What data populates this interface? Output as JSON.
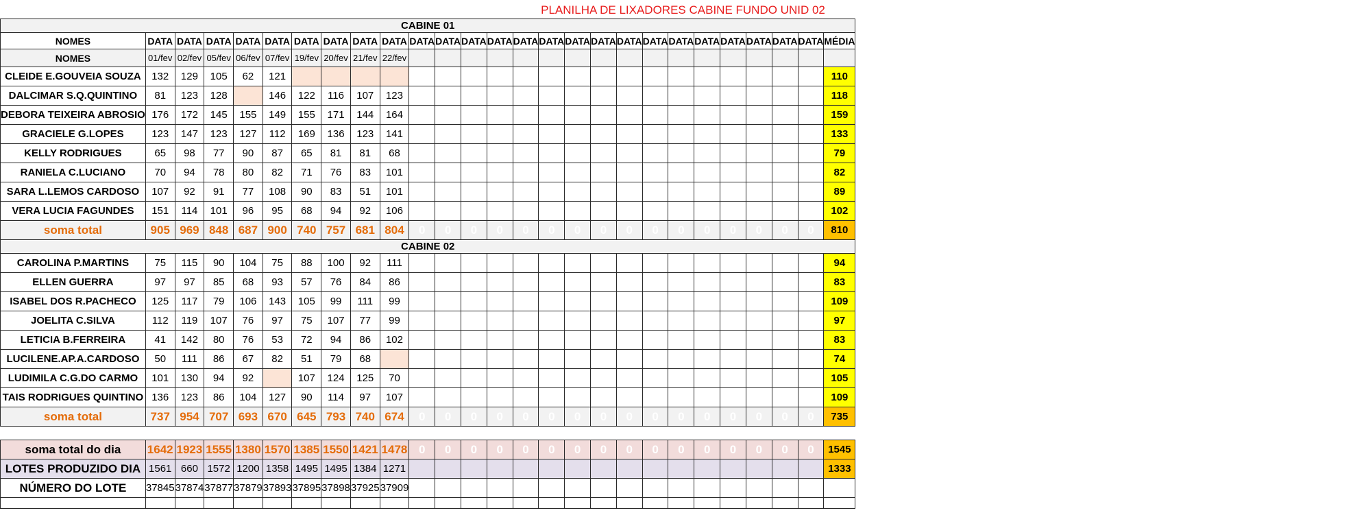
{
  "title": "PLANILHA DE LIXADORES CABINE FUNDO UNID 02",
  "cabine1_label": "CABINE 01",
  "cabine2_label": "CABINE 02",
  "header": {
    "nomes_label": "NOMES",
    "data_label": "DATA",
    "media_label": "MÉDIA",
    "dates": [
      "01/fev",
      "02/fev",
      "05/fev",
      "06/fev",
      "07/fev",
      "19/fev",
      "20/fev",
      "21/fev",
      "22/fev",
      "",
      "",
      "",
      "",
      "",
      "",
      "",
      "",
      "",
      "",
      "",
      "",
      "",
      "",
      "",
      ""
    ]
  },
  "total_label": "soma total",
  "cabine1": [
    {
      "name": "CLEIDE E.GOUVEIA SOUZA",
      "values": [
        "132",
        "129",
        "105",
        "62",
        "121",
        "",
        "",
        "",
        ""
      ],
      "missing": [
        5,
        6,
        7,
        8
      ],
      "avg": "110"
    },
    {
      "name": "DALCIMAR S.Q.QUINTINO",
      "values": [
        "81",
        "123",
        "128",
        "",
        "146",
        "122",
        "116",
        "107",
        "123"
      ],
      "missing": [
        3
      ],
      "avg": "118"
    },
    {
      "name": "DEBORA TEIXEIRA ABROSIO",
      "values": [
        "176",
        "172",
        "145",
        "155",
        "149",
        "155",
        "171",
        "144",
        "164"
      ],
      "missing": [],
      "avg": "159"
    },
    {
      "name": "GRACIELE G.LOPES",
      "values": [
        "123",
        "147",
        "123",
        "127",
        "112",
        "169",
        "136",
        "123",
        "141"
      ],
      "missing": [],
      "avg": "133"
    },
    {
      "name": "KELLY RODRIGUES",
      "values": [
        "65",
        "98",
        "77",
        "90",
        "87",
        "65",
        "81",
        "81",
        "68"
      ],
      "missing": [],
      "avg": "79"
    },
    {
      "name": "RANIELA C.LUCIANO",
      "values": [
        "70",
        "94",
        "78",
        "80",
        "82",
        "71",
        "76",
        "83",
        "101"
      ],
      "missing": [],
      "avg": "82"
    },
    {
      "name": "SARA L.LEMOS CARDOSO",
      "values": [
        "107",
        "92",
        "91",
        "77",
        "108",
        "90",
        "83",
        "51",
        "101"
      ],
      "missing": [],
      "avg": "89"
    },
    {
      "name": "VERA LUCIA FAGUNDES",
      "values": [
        "151",
        "114",
        "101",
        "96",
        "95",
        "68",
        "94",
        "92",
        "106"
      ],
      "missing": [],
      "avg": "102"
    }
  ],
  "cabine1_total": {
    "values": [
      "905",
      "969",
      "848",
      "687",
      "900",
      "740",
      "757",
      "681",
      "804"
    ],
    "avg": "810"
  },
  "cabine2": [
    {
      "name": "CAROLINA P.MARTINS",
      "values": [
        "75",
        "115",
        "90",
        "104",
        "75",
        "88",
        "100",
        "92",
        "111"
      ],
      "missing": [],
      "avg": "94"
    },
    {
      "name": "ELLEN GUERRA",
      "values": [
        "97",
        "97",
        "85",
        "68",
        "93",
        "57",
        "76",
        "84",
        "86"
      ],
      "missing": [],
      "avg": "83"
    },
    {
      "name": "ISABEL DOS R.PACHECO",
      "values": [
        "125",
        "117",
        "79",
        "106",
        "143",
        "105",
        "99",
        "111",
        "99"
      ],
      "missing": [],
      "avg": "109"
    },
    {
      "name": "JOELITA C.SILVA",
      "values": [
        "112",
        "119",
        "107",
        "76",
        "97",
        "75",
        "107",
        "77",
        "99"
      ],
      "missing": [],
      "avg": "97"
    },
    {
      "name": "LETICIA B.FERREIRA",
      "values": [
        "41",
        "142",
        "80",
        "76",
        "53",
        "72",
        "94",
        "86",
        "102"
      ],
      "missing": [],
      "avg": "83"
    },
    {
      "name": "LUCILENE.AP.A.CARDOSO",
      "values": [
        "50",
        "111",
        "86",
        "67",
        "82",
        "51",
        "79",
        "68",
        ""
      ],
      "missing": [
        8
      ],
      "avg": "74"
    },
    {
      "name": "LUDIMILA C.G.DO CARMO",
      "values": [
        "101",
        "130",
        "94",
        "92",
        "",
        "107",
        "124",
        "125",
        "70"
      ],
      "missing": [
        4
      ],
      "avg": "105"
    },
    {
      "name": "TAIS RODRIGUES QUINTINO",
      "values": [
        "136",
        "123",
        "86",
        "104",
        "127",
        "90",
        "114",
        "97",
        "107"
      ],
      "missing": [],
      "avg": "109"
    }
  ],
  "cabine2_total": {
    "values": [
      "737",
      "954",
      "707",
      "693",
      "670",
      "645",
      "793",
      "740",
      "674"
    ],
    "avg": "735"
  },
  "zero_value": "0",
  "day_total": {
    "label": "soma total  do dia",
    "values": [
      "1642",
      "1923",
      "1555",
      "1380",
      "1570",
      "1385",
      "1550",
      "1421",
      "1478"
    ],
    "avg": "1545"
  },
  "lotes": {
    "label": "LOTES PRODUZIDO DIA",
    "values": [
      "1561",
      "660",
      "1572",
      "1200",
      "1358",
      "1495",
      "1495",
      "1384",
      "1271"
    ],
    "avg": "1333"
  },
  "numero_lote": {
    "label": "NÚMERO DO LOTE",
    "values": [
      "37845",
      "37874",
      "37877",
      "37879",
      "37893",
      "37895",
      "37898",
      "37925",
      "37909"
    ]
  }
}
